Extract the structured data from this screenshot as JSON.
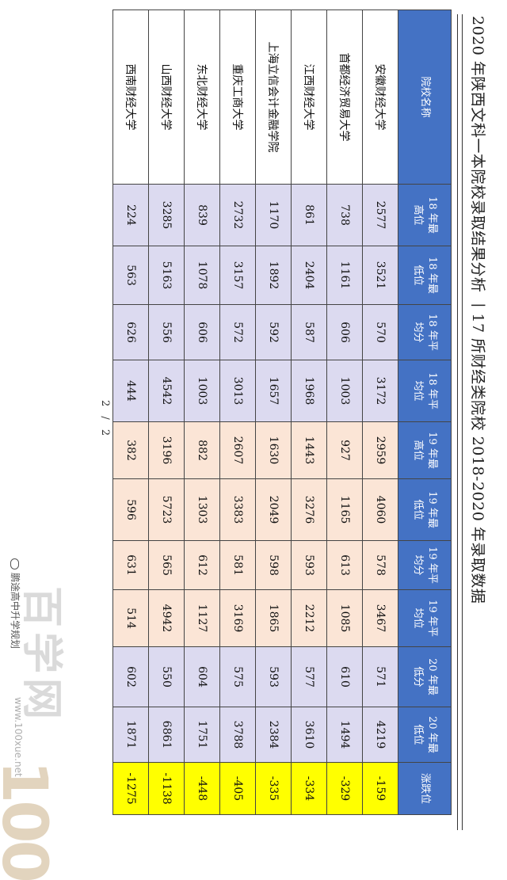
{
  "title": "2020 年陕西文科一本院校录取结果分析 丨17 所财经类院校 2018-2020 年录取数据",
  "page_number": "2 / 2",
  "headers": [
    "院校名称",
    "18 年最高位",
    "18 年最低位",
    "18 年平均分",
    "18 年平均位",
    "19 年最高位",
    "19 年最低位",
    "19 年平均分",
    "19 年平均位",
    "20 年最低分",
    "20 年最低位",
    "涨跌位"
  ],
  "rows": [
    [
      "安徽财经大学",
      "2577",
      "3521",
      "570",
      "3172",
      "2959",
      "4060",
      "578",
      "3467",
      "571",
      "4219",
      "-159"
    ],
    [
      "首都经济贸易大学",
      "738",
      "1161",
      "606",
      "1003",
      "927",
      "1165",
      "613",
      "1085",
      "610",
      "1494",
      "-329"
    ],
    [
      "江西财经大学",
      "861",
      "2404",
      "587",
      "1968",
      "1443",
      "3276",
      "593",
      "2212",
      "577",
      "3610",
      "-334"
    ],
    [
      "上海立信会计金融学院",
      "1170",
      "1892",
      "592",
      "1657",
      "1630",
      "2049",
      "598",
      "1865",
      "593",
      "2384",
      "-335"
    ],
    [
      "重庆工商大学",
      "2732",
      "3157",
      "572",
      "3013",
      "2607",
      "3383",
      "581",
      "3169",
      "575",
      "3788",
      "-405"
    ],
    [
      "东北财经大学",
      "839",
      "1078",
      "606",
      "1003",
      "882",
      "1303",
      "612",
      "1127",
      "604",
      "1751",
      "-448"
    ],
    [
      "山西财经大学",
      "3285",
      "5163",
      "556",
      "4542",
      "3196",
      "5723",
      "565",
      "4942",
      "550",
      "6861",
      "-1138"
    ],
    [
      "西南财经大学",
      "224",
      "563",
      "626",
      "444",
      "382",
      "596",
      "631",
      "514",
      "602",
      "1871",
      "-1275"
    ]
  ],
  "watermark": {
    "logo": "100",
    "brand": "百学网",
    "url": "www.100xue.net",
    "wechat": "鹏途高中升学规划"
  },
  "colors": {
    "header": "#4472c4",
    "y2018": "#dcdaf0",
    "y2019": "#fbe5d6",
    "y2020": "#dcdaf0",
    "change": "#ffff00"
  }
}
